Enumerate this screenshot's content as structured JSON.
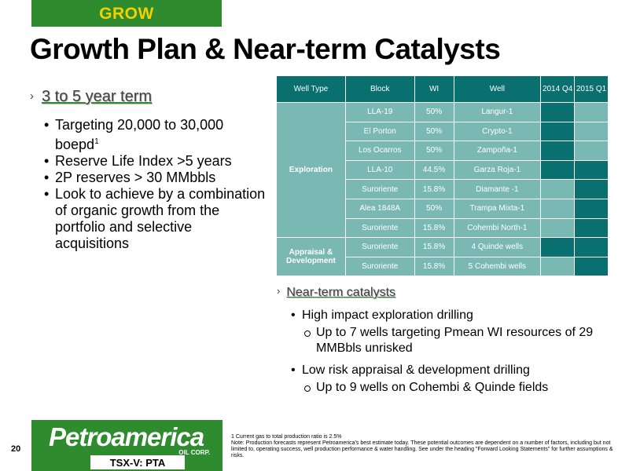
{
  "tag": "GROW",
  "title": "Growth Plan & Near-term Catalysts",
  "left": {
    "heading": "3 to 5 year term",
    "bullets": [
      "Targeting 20,000 to 30,000 boepd",
      "Reserve Life Index >5 years",
      "2P reserves > 30 MMbbls",
      "Look to achieve by a combination of organic growth from the portfolio and selective acquisitions"
    ],
    "sup": "1"
  },
  "table": {
    "headers": [
      "Well Type",
      "Block",
      "WI",
      "Well",
      "2014 Q4",
      "2015 Q1"
    ],
    "groups": [
      "Exploration",
      "Appraisal & Development"
    ],
    "rows": [
      {
        "block": "LLA-19",
        "wi": "50%",
        "well": "Langur-1",
        "q4": "dark",
        "q1": "light"
      },
      {
        "block": "El Porton",
        "wi": "50%",
        "well": "Crypto-1",
        "q4": "dark",
        "q1": "light"
      },
      {
        "block": "Los Ocarros",
        "wi": "50%",
        "well": "Zampoña-1",
        "q4": "dark",
        "q1": "light"
      },
      {
        "block": "LLA-10",
        "wi": "44.5%",
        "well": "Garza  Roja-1",
        "q4": "dark",
        "q1": "dark"
      },
      {
        "block": "Suroriente",
        "wi": "15.8%",
        "well": "Diamante -1",
        "q4": "light",
        "q1": "dark"
      },
      {
        "block": "Alea 1848A",
        "wi": "50%",
        "well": "Trampa Mixta-1",
        "q4": "light",
        "q1": "dark"
      },
      {
        "block": "Suroriente",
        "wi": "15.8%",
        "well": "Cohembi North-1",
        "q4": "light",
        "q1": "dark"
      },
      {
        "block": "Suroriente",
        "wi": "15.8%",
        "well": "4 Quinde wells",
        "q4": "dark",
        "q1": "dark"
      },
      {
        "block": "Suroriente",
        "wi": "15.8%",
        "well": "5 Cohembi wells",
        "q4": "light",
        "q1": "dark"
      }
    ]
  },
  "right": {
    "heading": "Near-term catalysts",
    "items": [
      {
        "text": "High impact exploration drilling",
        "sub": [
          "Up to 7 wells targeting Pmean WI resources of 29 MMBbls unrisked"
        ]
      },
      {
        "text": "Low risk appraisal & development drilling",
        "sub": [
          "Up to 9 wells on Cohembi & Quinde fields"
        ]
      }
    ]
  },
  "page_number": "20",
  "logo": {
    "name": "Petroamerica",
    "corp": "OIL CORP.",
    "ticker": "TSX-V: PTA"
  },
  "footnote": {
    "line1": "1 Current gas to total production ratio is 2.5%",
    "line2": "Note: Production forecasts represent Petroamerica's best estimate today. These potential outcomes are dependent on a number of factors, including but not limited to, operating success, well production performance & water handling. See under the heading \"Forward Looking Statements\" for further assumptions & risks."
  }
}
